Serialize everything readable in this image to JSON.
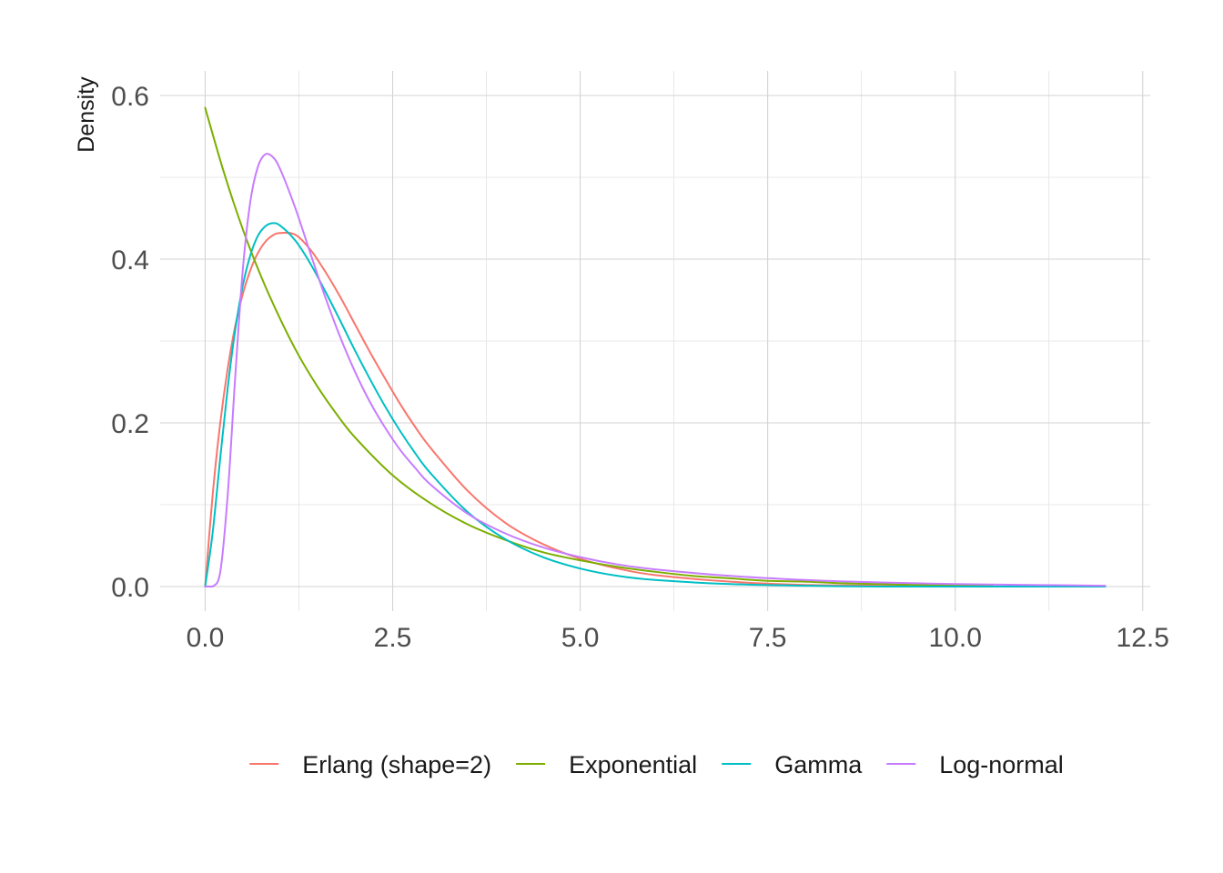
{
  "chart_data": {
    "type": "line",
    "title": "",
    "xlabel": "",
    "ylabel": "Density",
    "xlim": [
      -0.6,
      12.6
    ],
    "ylim": [
      -0.03,
      0.63
    ],
    "x_ticks": [
      0.0,
      2.5,
      5.0,
      7.5,
      10.0,
      12.5
    ],
    "x_tick_labels": [
      "0.0",
      "2.5",
      "5.0",
      "7.5",
      "10.0",
      "12.5"
    ],
    "y_ticks": [
      0.0,
      0.2,
      0.4,
      0.6
    ],
    "y_tick_labels": [
      "0.0",
      "0.2",
      "0.4",
      "0.6"
    ],
    "grid": true,
    "legend_position": "bottom",
    "series": [
      {
        "name": "Erlang (shape=2)",
        "color": "#F8766D",
        "x": [
          0.0,
          0.1,
          0.2,
          0.3,
          0.4,
          0.5,
          0.6,
          0.7,
          0.8,
          0.9,
          1.0,
          1.2,
          1.4,
          1.6,
          1.8,
          2.0,
          2.2,
          2.4,
          2.6,
          2.8,
          3.0,
          3.5,
          4.0,
          4.5,
          5.0,
          5.5,
          6.0,
          7.0,
          8.0,
          9.0,
          10.0,
          11.0,
          12.0
        ],
        "y": [
          0.0,
          0.112,
          0.199,
          0.266,
          0.318,
          0.357,
          0.386,
          0.407,
          0.421,
          0.429,
          0.432,
          0.43,
          0.412,
          0.385,
          0.354,
          0.32,
          0.286,
          0.254,
          0.223,
          0.195,
          0.17,
          0.117,
          0.078,
          0.052,
          0.034,
          0.022,
          0.014,
          0.006,
          0.002,
          0.001,
          0.0,
          0.0,
          0.0
        ]
      },
      {
        "name": "Exponential",
        "color": "#7CAE00",
        "x": [
          0.0,
          0.25,
          0.5,
          0.75,
          1.0,
          1.25,
          1.5,
          1.75,
          2.0,
          2.5,
          3.0,
          3.5,
          4.0,
          4.5,
          5.0,
          5.5,
          6.0,
          6.5,
          7.0,
          7.5,
          8.0,
          8.5,
          9.0,
          9.5,
          10.0,
          10.5
        ],
        "y": [
          0.585,
          0.506,
          0.437,
          0.378,
          0.327,
          0.282,
          0.244,
          0.211,
          0.182,
          0.136,
          0.102,
          0.076,
          0.057,
          0.042,
          0.032,
          0.024,
          0.018,
          0.013,
          0.01,
          0.007,
          0.006,
          0.004,
          0.003,
          0.002,
          0.002,
          0.001
        ]
      },
      {
        "name": "Gamma",
        "color": "#00BFC4",
        "x": [
          0.0,
          0.1,
          0.2,
          0.3,
          0.4,
          0.5,
          0.6,
          0.7,
          0.8,
          0.9,
          1.0,
          1.2,
          1.4,
          1.6,
          1.8,
          2.0,
          2.2,
          2.4,
          2.6,
          2.8,
          3.0,
          3.5,
          4.0,
          4.5,
          5.0,
          5.5,
          6.0,
          7.0,
          8.0,
          9.0,
          10.0,
          11.0,
          12.0
        ],
        "y": [
          0.0,
          0.066,
          0.156,
          0.242,
          0.313,
          0.367,
          0.404,
          0.428,
          0.44,
          0.444,
          0.441,
          0.423,
          0.395,
          0.361,
          0.325,
          0.288,
          0.253,
          0.22,
          0.19,
          0.163,
          0.139,
          0.091,
          0.058,
          0.036,
          0.022,
          0.013,
          0.008,
          0.003,
          0.001,
          0.0,
          0.0,
          0.0,
          0.0
        ]
      },
      {
        "name": "Log-normal",
        "color": "#C77CFF",
        "x": [
          0.0,
          0.1,
          0.2,
          0.3,
          0.4,
          0.5,
          0.6,
          0.7,
          0.8,
          0.9,
          1.0,
          1.2,
          1.4,
          1.6,
          1.8,
          2.0,
          2.2,
          2.4,
          2.6,
          2.8,
          3.0,
          3.5,
          4.0,
          4.5,
          5.0,
          5.5,
          6.0,
          7.0,
          8.0,
          9.0,
          10.0,
          11.0,
          12.0
        ],
        "y": [
          0.0,
          0.0,
          0.017,
          0.111,
          0.255,
          0.385,
          0.469,
          0.512,
          0.528,
          0.525,
          0.51,
          0.463,
          0.408,
          0.354,
          0.305,
          0.262,
          0.225,
          0.194,
          0.167,
          0.145,
          0.125,
          0.089,
          0.065,
          0.048,
          0.036,
          0.027,
          0.021,
          0.013,
          0.008,
          0.005,
          0.003,
          0.002,
          0.001
        ]
      }
    ]
  }
}
